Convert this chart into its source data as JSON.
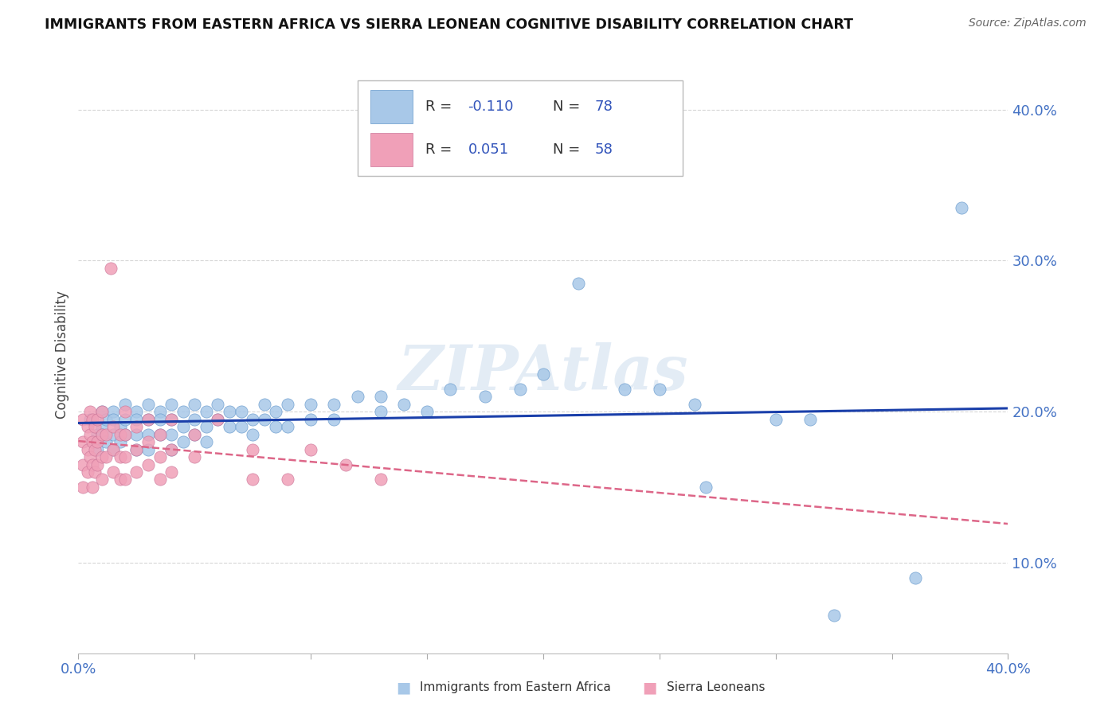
{
  "title": "IMMIGRANTS FROM EASTERN AFRICA VS SIERRA LEONEAN COGNITIVE DISABILITY CORRELATION CHART",
  "source": "Source: ZipAtlas.com",
  "ylabel": "Cognitive Disability",
  "ytick_vals": [
    0.1,
    0.2,
    0.3,
    0.4
  ],
  "xrange": [
    0.0,
    0.4
  ],
  "yrange": [
    0.04,
    0.435
  ],
  "color_blue": "#A8C8E8",
  "color_pink": "#F0A0B8",
  "trend_blue": "#1A3FAA",
  "trend_pink": "#DD6688",
  "watermark": "ZIPAtlas",
  "blue_points": [
    [
      0.005,
      0.195
    ],
    [
      0.008,
      0.185
    ],
    [
      0.008,
      0.175
    ],
    [
      0.01,
      0.2
    ],
    [
      0.01,
      0.19
    ],
    [
      0.01,
      0.185
    ],
    [
      0.012,
      0.195
    ],
    [
      0.012,
      0.18
    ],
    [
      0.015,
      0.2
    ],
    [
      0.015,
      0.195
    ],
    [
      0.015,
      0.185
    ],
    [
      0.015,
      0.175
    ],
    [
      0.018,
      0.19
    ],
    [
      0.018,
      0.18
    ],
    [
      0.02,
      0.205
    ],
    [
      0.02,
      0.195
    ],
    [
      0.02,
      0.185
    ],
    [
      0.025,
      0.2
    ],
    [
      0.025,
      0.195
    ],
    [
      0.025,
      0.185
    ],
    [
      0.025,
      0.175
    ],
    [
      0.03,
      0.205
    ],
    [
      0.03,
      0.195
    ],
    [
      0.03,
      0.185
    ],
    [
      0.03,
      0.175
    ],
    [
      0.035,
      0.2
    ],
    [
      0.035,
      0.195
    ],
    [
      0.035,
      0.185
    ],
    [
      0.04,
      0.205
    ],
    [
      0.04,
      0.195
    ],
    [
      0.04,
      0.185
    ],
    [
      0.04,
      0.175
    ],
    [
      0.045,
      0.2
    ],
    [
      0.045,
      0.19
    ],
    [
      0.045,
      0.18
    ],
    [
      0.05,
      0.205
    ],
    [
      0.05,
      0.195
    ],
    [
      0.05,
      0.185
    ],
    [
      0.055,
      0.2
    ],
    [
      0.055,
      0.19
    ],
    [
      0.055,
      0.18
    ],
    [
      0.06,
      0.205
    ],
    [
      0.06,
      0.195
    ],
    [
      0.065,
      0.2
    ],
    [
      0.065,
      0.19
    ],
    [
      0.07,
      0.2
    ],
    [
      0.07,
      0.19
    ],
    [
      0.075,
      0.195
    ],
    [
      0.075,
      0.185
    ],
    [
      0.08,
      0.205
    ],
    [
      0.08,
      0.195
    ],
    [
      0.085,
      0.2
    ],
    [
      0.085,
      0.19
    ],
    [
      0.09,
      0.205
    ],
    [
      0.09,
      0.19
    ],
    [
      0.1,
      0.205
    ],
    [
      0.1,
      0.195
    ],
    [
      0.11,
      0.205
    ],
    [
      0.11,
      0.195
    ],
    [
      0.12,
      0.21
    ],
    [
      0.13,
      0.21
    ],
    [
      0.13,
      0.2
    ],
    [
      0.14,
      0.205
    ],
    [
      0.15,
      0.2
    ],
    [
      0.16,
      0.215
    ],
    [
      0.175,
      0.21
    ],
    [
      0.19,
      0.215
    ],
    [
      0.2,
      0.225
    ],
    [
      0.215,
      0.285
    ],
    [
      0.235,
      0.215
    ],
    [
      0.25,
      0.215
    ],
    [
      0.265,
      0.205
    ],
    [
      0.27,
      0.15
    ],
    [
      0.3,
      0.195
    ],
    [
      0.315,
      0.195
    ],
    [
      0.325,
      0.065
    ],
    [
      0.36,
      0.09
    ],
    [
      0.38,
      0.335
    ]
  ],
  "pink_points": [
    [
      0.002,
      0.195
    ],
    [
      0.002,
      0.18
    ],
    [
      0.002,
      0.165
    ],
    [
      0.002,
      0.15
    ],
    [
      0.004,
      0.19
    ],
    [
      0.004,
      0.175
    ],
    [
      0.004,
      0.16
    ],
    [
      0.005,
      0.2
    ],
    [
      0.005,
      0.185
    ],
    [
      0.005,
      0.17
    ],
    [
      0.006,
      0.195
    ],
    [
      0.006,
      0.18
    ],
    [
      0.006,
      0.165
    ],
    [
      0.006,
      0.15
    ],
    [
      0.007,
      0.19
    ],
    [
      0.007,
      0.175
    ],
    [
      0.007,
      0.16
    ],
    [
      0.008,
      0.195
    ],
    [
      0.008,
      0.18
    ],
    [
      0.008,
      0.165
    ],
    [
      0.01,
      0.2
    ],
    [
      0.01,
      0.185
    ],
    [
      0.01,
      0.17
    ],
    [
      0.01,
      0.155
    ],
    [
      0.012,
      0.185
    ],
    [
      0.012,
      0.17
    ],
    [
      0.014,
      0.295
    ],
    [
      0.015,
      0.19
    ],
    [
      0.015,
      0.175
    ],
    [
      0.015,
      0.16
    ],
    [
      0.018,
      0.185
    ],
    [
      0.018,
      0.17
    ],
    [
      0.018,
      0.155
    ],
    [
      0.02,
      0.2
    ],
    [
      0.02,
      0.185
    ],
    [
      0.02,
      0.17
    ],
    [
      0.02,
      0.155
    ],
    [
      0.025,
      0.19
    ],
    [
      0.025,
      0.175
    ],
    [
      0.025,
      0.16
    ],
    [
      0.03,
      0.195
    ],
    [
      0.03,
      0.18
    ],
    [
      0.03,
      0.165
    ],
    [
      0.035,
      0.185
    ],
    [
      0.035,
      0.17
    ],
    [
      0.035,
      0.155
    ],
    [
      0.04,
      0.195
    ],
    [
      0.04,
      0.175
    ],
    [
      0.04,
      0.16
    ],
    [
      0.05,
      0.185
    ],
    [
      0.05,
      0.17
    ],
    [
      0.06,
      0.195
    ],
    [
      0.075,
      0.175
    ],
    [
      0.075,
      0.155
    ],
    [
      0.09,
      0.155
    ],
    [
      0.1,
      0.175
    ],
    [
      0.115,
      0.165
    ],
    [
      0.13,
      0.155
    ]
  ]
}
